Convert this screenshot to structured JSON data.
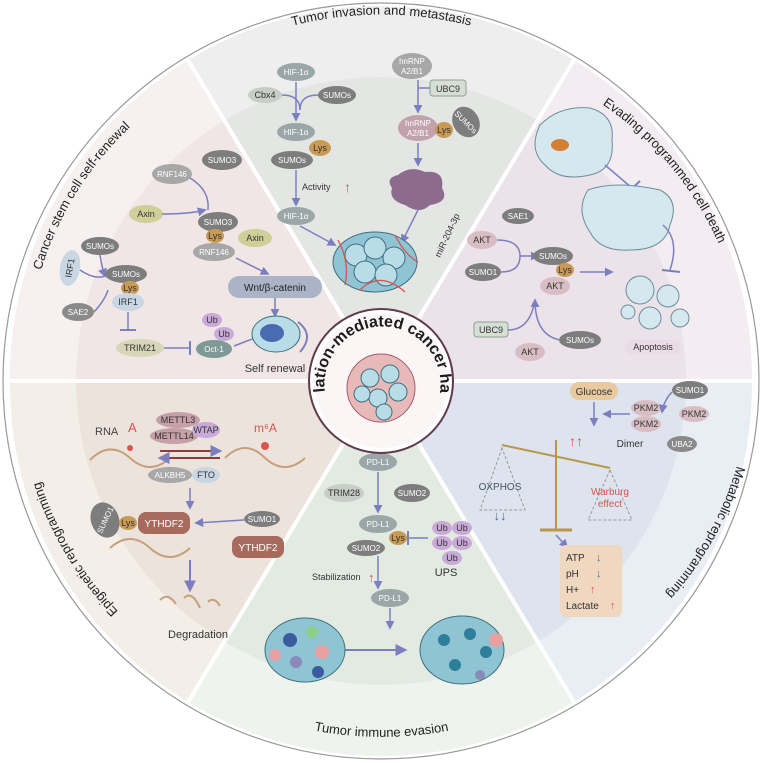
{
  "center": {
    "title": "SUMOylation-mediated cancer hallmarks"
  },
  "sections": {
    "invasion": {
      "title": "Tumor invasion and metastasis",
      "hif": "HIF-1α",
      "cbx4": "Cbx4",
      "sumos": "SUMOs",
      "lys": "Lys",
      "activity": "Activity",
      "hnrnp": "hnRNP",
      "a2b1": "A2/B1",
      "ubc9": "UBC9",
      "mir": "miR-204-3p"
    },
    "apoptosis": {
      "title": "Evading programmed cell death",
      "sae1": "SAE1",
      "akt": "AKT",
      "sumo1": "SUMO1",
      "sumos": "SUMOs",
      "lys": "Lys",
      "ubc9": "UBC9",
      "apoptosis": "Apoptosis"
    },
    "metabolic": {
      "title": "Metabolic reprogramming",
      "glucose": "Glucose",
      "sumo1": "SUMO1",
      "pkm2": "PKM2",
      "uba2": "UBA2",
      "dimer": "Dimer",
      "oxphos": "OXPHOS",
      "warburg": "Warburg",
      "effect": "effect",
      "atp": "ATP",
      "ph": "pH",
      "hplus": "H+",
      "lactate": "Lactate",
      "down": "↓",
      "up": "↑",
      "doubleUp": "↑↑",
      "doubleDown": "↓↓"
    },
    "immune": {
      "title": "Tumor immune evasion",
      "pdl1": "PD-L1",
      "trim28": "TRIM28",
      "sumo2": "SUMO2",
      "lys": "Lys",
      "ub": "Ub",
      "ups": "UPS",
      "stabilization": "Stabilization"
    },
    "epigenetic": {
      "title": "Epigenetic reprogramming",
      "rna": "RNA",
      "a": "A",
      "m6a": "m⁶A",
      "mettl3": "METTL3",
      "mettl14": "METTL14",
      "wtap": "WTAP",
      "alkbh5": "ALKBH5",
      "fto": "FTO",
      "sumo1": "SUMO1",
      "lys": "Lys",
      "ythdf2": "YTHDF2",
      "degradation": "Degradation"
    },
    "stem": {
      "title": "Cancer stem cell self-renewal",
      "rnf146": "RNF146",
      "sumo3": "SUMO3",
      "axin": "Axin",
      "lys": "Lys",
      "wnt": "Wnt/β-catenin",
      "irf1": "IRF1",
      "sumos": "SUMOs",
      "sae2": "SAE2",
      "trim21": "TRIM21",
      "ub": "Ub",
      "oct1": "Oct-1",
      "selfRenewal": "Self renewal"
    }
  },
  "colors": {
    "invasion_bg": "#e4e6e4",
    "apoptosis_bg": "#ece2ea",
    "metabolic_bg": "#dde4ee",
    "immune_bg": "#e2eae2",
    "epigenetic_bg": "#ece3dc",
    "stem_bg": "#f1e6e6",
    "sumo": "#7d7d7d",
    "lys": "#c99a56",
    "ub": "#c9a9d8",
    "cell": "#b9dde8",
    "accent_red": "#d9534f"
  }
}
